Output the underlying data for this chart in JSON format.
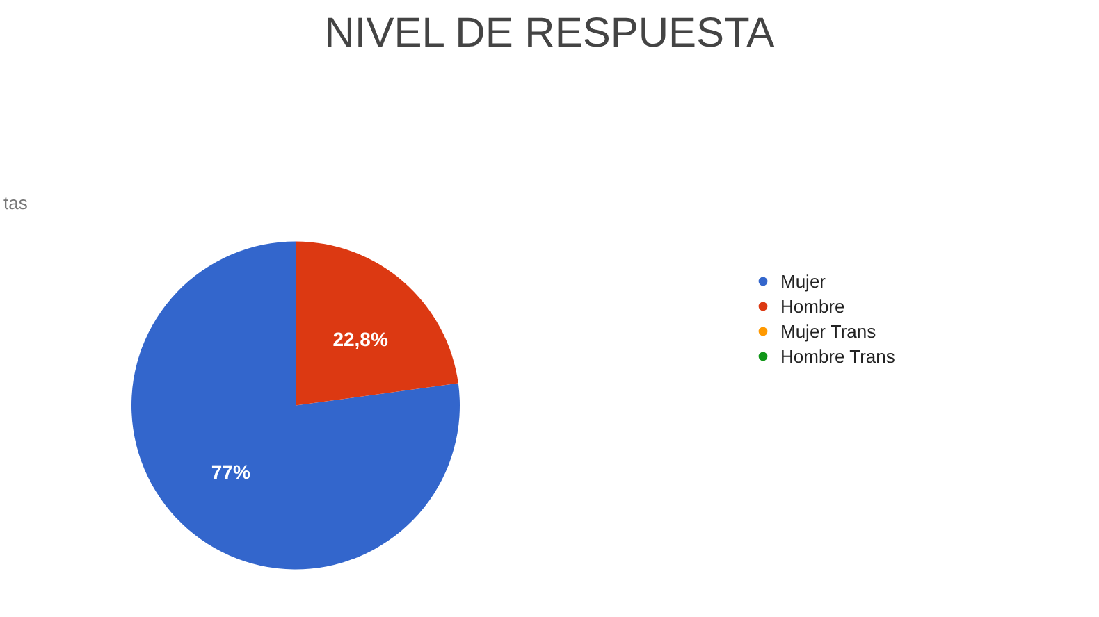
{
  "chart_data": {
    "type": "pie",
    "title": "NIVEL DE RESPUESTA",
    "annotations": [
      "tas"
    ],
    "categories": [
      "Mujer",
      "Hombre",
      "Mujer Trans",
      "Hombre Trans"
    ],
    "values": [
      77,
      22.8,
      0,
      0
    ],
    "colors": [
      "#3366cc",
      "#dc3912",
      "#ff9900",
      "#109618"
    ],
    "value_labels": [
      "77%",
      "22,8%",
      null,
      null
    ],
    "legend": "right"
  }
}
